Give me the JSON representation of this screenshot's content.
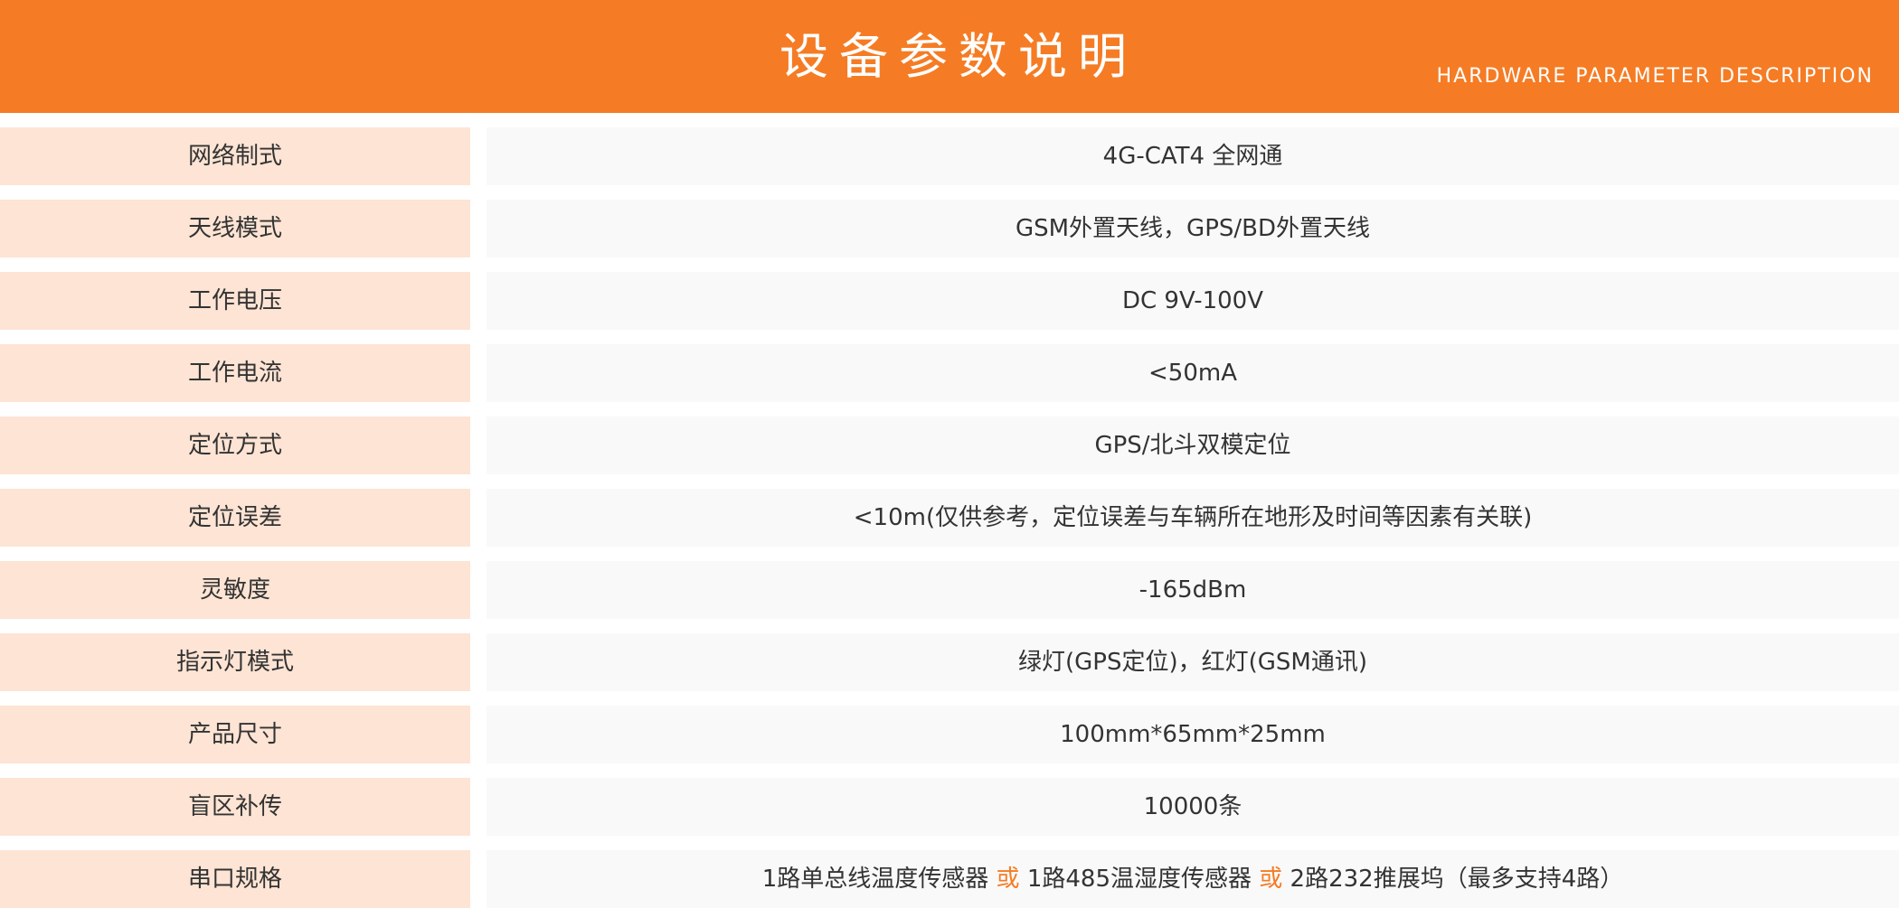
{
  "header": {
    "title": "设备参数说明",
    "subtitle": "HARDWARE PARAMETER DESCRIPTION"
  },
  "colors": {
    "accent": "#F57C24",
    "label_bg": "#FDE4D4",
    "value_bg": "#F9F9F9"
  },
  "params": [
    {
      "label": "网络制式",
      "value": "4G-CAT4 全网通"
    },
    {
      "label": "天线模式",
      "value": "GSM外置天线，GPS/BD外置天线"
    },
    {
      "label": "工作电压",
      "value": "DC 9V-100V"
    },
    {
      "label": "工作电流",
      "value": "<50mA"
    },
    {
      "label": "定位方式",
      "value": "GPS/北斗双模定位"
    },
    {
      "label": "定位误差",
      "value": "<10m(仅供参考，定位误差与车辆所在地形及时间等因素有关联)"
    },
    {
      "label": "灵敏度",
      "value": "-165dBm"
    },
    {
      "label": "指示灯模式",
      "value": "绿灯(GPS定位)，红灯(GSM通讯)"
    },
    {
      "label": "产品尺寸",
      "value": "100mm*65mm*25mm"
    },
    {
      "label": "盲区补传",
      "value": "10000条"
    },
    {
      "label": "串口规格",
      "value_parts": [
        "1路单总线温度传感器 ",
        "或",
        " 1路485温湿度传感器 ",
        "或",
        " 2路232推展坞（最多支持4路）"
      ]
    }
  ]
}
